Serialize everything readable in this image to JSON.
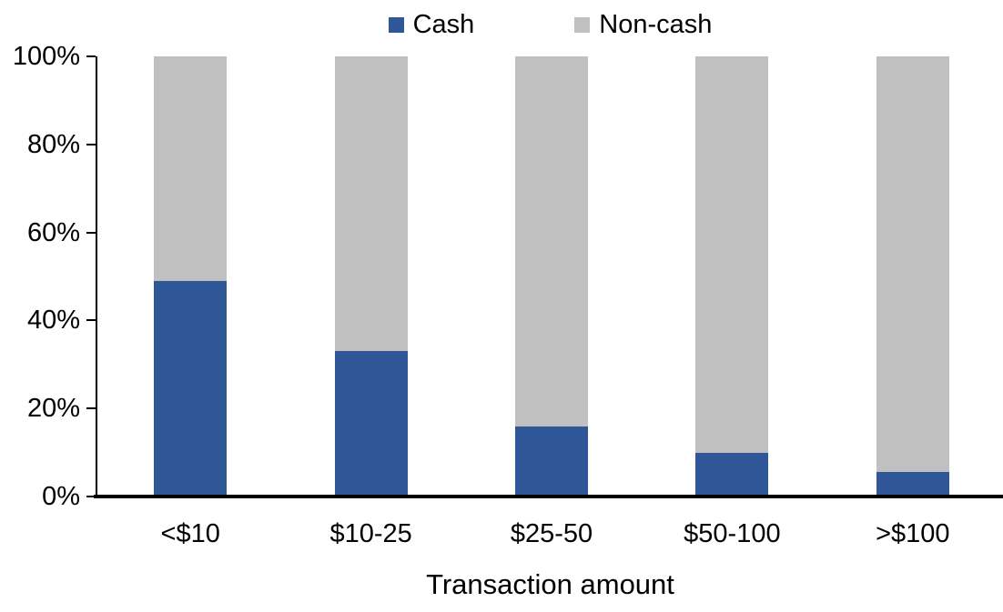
{
  "chart_data": {
    "type": "bar",
    "subtype": "stacked-100",
    "title": "",
    "xlabel": "Transaction amount",
    "ylabel": "",
    "categories": [
      "<$10",
      "$10-25",
      "$25-50",
      "$50-100",
      ">$100"
    ],
    "series": [
      {
        "name": "Cash",
        "color": "#2F5697",
        "values": [
          49,
          33,
          16,
          10,
          5.5
        ]
      },
      {
        "name": "Non-cash",
        "color": "#C0C0C0",
        "values": [
          51,
          67,
          84,
          90,
          94.5
        ]
      }
    ],
    "ylim": [
      0,
      100
    ],
    "yticks": [
      {
        "value": 0,
        "label": "0%"
      },
      {
        "value": 20,
        "label": "20%"
      },
      {
        "value": 40,
        "label": "40%"
      },
      {
        "value": 60,
        "label": "60%"
      },
      {
        "value": 80,
        "label": "80%"
      },
      {
        "value": 100,
        "label": "100%"
      }
    ],
    "legend_position": "top-center",
    "grid": false,
    "axis_color": "#000000",
    "background_color": "#FFFFFF"
  }
}
